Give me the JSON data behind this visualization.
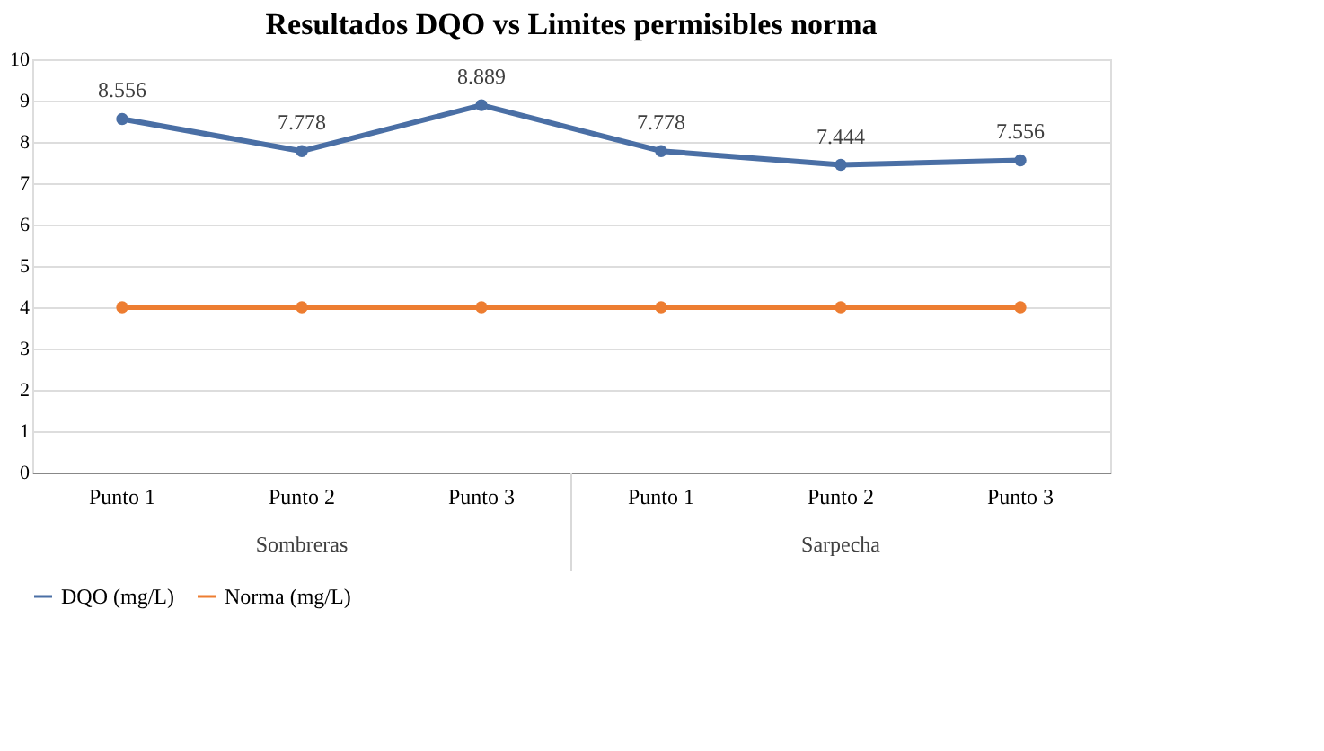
{
  "chart_data": {
    "type": "line",
    "title": "Resultados DQO vs Limites permisibles norma",
    "categories": [
      "Punto 1",
      "Punto 2",
      "Punto 3",
      "Punto 1",
      "Punto 2",
      "Punto 3"
    ],
    "series": [
      {
        "name": "DQO (mg/L)",
        "color": "#4a6fa5",
        "values": [
          8.556,
          7.778,
          8.889,
          7.778,
          7.444,
          7.556
        ],
        "value_labels": [
          "8.556",
          "7.778",
          "8.889",
          "7.778",
          "7.444",
          "7.556"
        ]
      },
      {
        "name": "Norma (mg/L)",
        "color": "#ed7d31",
        "values": [
          4,
          4,
          4,
          4,
          4,
          4
        ]
      }
    ],
    "annotations": [
      "Sombreras",
      "Sarpecha"
    ],
    "ylim": [
      0,
      10
    ],
    "yticks": [
      0,
      1,
      2,
      3,
      4,
      5,
      6,
      7,
      8,
      9,
      10
    ],
    "grid": "y",
    "legend": "bottom",
    "marker": "circle",
    "line_style": "solid"
  }
}
